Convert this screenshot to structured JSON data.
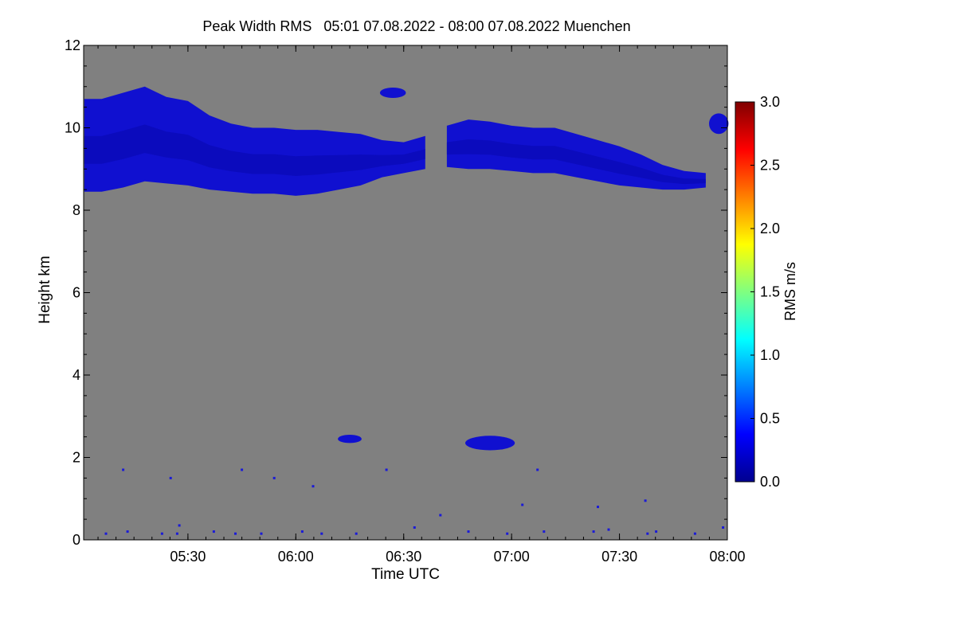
{
  "chart_data": {
    "type": "heatmap",
    "title": "Peak Width RMS   05:01 07.08.2022 - 08:00 07.08.2022 Muenchen",
    "xlabel": "Time UTC",
    "ylabel": "Height km",
    "xlim_hours": [
      5.0167,
      8.0
    ],
    "ylim": [
      0,
      12
    ],
    "x_ticks": [
      {
        "hour": 5.5,
        "label": "05:30"
      },
      {
        "hour": 6.0,
        "label": "06:00"
      },
      {
        "hour": 6.5,
        "label": "06:30"
      },
      {
        "hour": 7.0,
        "label": "07:00"
      },
      {
        "hour": 7.5,
        "label": "07:30"
      },
      {
        "hour": 8.0,
        "label": "08:00"
      }
    ],
    "y_ticks": [
      {
        "value": 0,
        "label": "0"
      },
      {
        "value": 2,
        "label": "2"
      },
      {
        "value": 4,
        "label": "4"
      },
      {
        "value": 6,
        "label": "6"
      },
      {
        "value": 8,
        "label": "8"
      },
      {
        "value": 10,
        "label": "10"
      },
      {
        "value": 12,
        "label": "12"
      }
    ],
    "colorbar": {
      "label": "RMS m/s",
      "range": [
        0.0,
        3.0
      ],
      "ticks": [
        {
          "value": 0.0,
          "label": "0.0"
        },
        {
          "value": 0.5,
          "label": "0.5"
        },
        {
          "value": 1.0,
          "label": "1.0"
        },
        {
          "value": 1.5,
          "label": "1.5"
        },
        {
          "value": 2.0,
          "label": "2.0"
        },
        {
          "value": 2.5,
          "label": "2.5"
        },
        {
          "value": 3.0,
          "label": "3.0"
        }
      ],
      "colors": [
        "#00008f",
        "#0000ff",
        "#0080ff",
        "#00ffff",
        "#80ff80",
        "#ffff00",
        "#ff8000",
        "#ff0000",
        "#800000"
      ]
    },
    "no_data_color": "#808080",
    "signal_color": "#1010d0",
    "cloud_layer": {
      "description_units": "hour -> [bottom_km, top_km]",
      "hours": [
        5.02,
        5.1,
        5.2,
        5.3,
        5.4,
        5.5,
        5.6,
        5.7,
        5.8,
        5.9,
        6.0,
        6.1,
        6.2,
        6.3,
        6.4,
        6.5,
        6.6,
        6.7,
        6.8,
        6.9,
        7.0,
        7.1,
        7.2,
        7.3,
        7.4,
        7.5,
        7.6,
        7.7,
        7.8,
        7.9,
        8.0
      ],
      "bottom": [
        8.45,
        8.45,
        8.55,
        8.7,
        8.65,
        8.6,
        8.5,
        8.45,
        8.4,
        8.4,
        8.35,
        8.4,
        8.5,
        8.6,
        8.8,
        8.9,
        9.0,
        9.05,
        9.0,
        9.0,
        8.95,
        8.9,
        8.9,
        8.8,
        8.7,
        8.6,
        8.55,
        8.5,
        8.5,
        8.55,
        8.6
      ],
      "top": [
        10.7,
        10.7,
        10.85,
        11.0,
        10.75,
        10.65,
        10.3,
        10.1,
        10.0,
        10.0,
        9.95,
        9.95,
        9.9,
        9.85,
        9.7,
        9.65,
        9.8,
        10.05,
        10.2,
        10.15,
        10.05,
        10.0,
        10.0,
        9.85,
        9.7,
        9.55,
        9.35,
        9.1,
        8.95,
        8.9,
        8.9
      ],
      "segments": [
        {
          "from_hour": 5.02,
          "to_hour": 6.62
        },
        {
          "from_hour": 6.62,
          "to_hour": 7.93
        }
      ]
    },
    "patches": [
      {
        "hour": 6.25,
        "height": 2.45,
        "width_hours": 0.11,
        "height_km": 0.2
      },
      {
        "hour": 6.9,
        "height": 2.35,
        "width_hours": 0.23,
        "height_km": 0.35
      },
      {
        "hour": 6.45,
        "height": 10.85,
        "width_hours": 0.12,
        "height_km": 0.25
      },
      {
        "hour": 7.96,
        "height": 10.1,
        "width_hours": 0.09,
        "height_km": 0.5
      }
    ],
    "noise_points": [
      {
        "hour": 5.12,
        "height": 0.15
      },
      {
        "hour": 5.22,
        "height": 0.2
      },
      {
        "hour": 5.38,
        "height": 0.15
      },
      {
        "hour": 5.45,
        "height": 0.15
      },
      {
        "hour": 5.62,
        "height": 0.2
      },
      {
        "hour": 5.72,
        "height": 0.15
      },
      {
        "hour": 5.84,
        "height": 0.15
      },
      {
        "hour": 6.03,
        "height": 0.2
      },
      {
        "hour": 6.12,
        "height": 0.15
      },
      {
        "hour": 6.28,
        "height": 0.15
      },
      {
        "hour": 6.55,
        "height": 0.3
      },
      {
        "hour": 6.67,
        "height": 0.6
      },
      {
        "hour": 6.98,
        "height": 0.15
      },
      {
        "hour": 7.15,
        "height": 0.2
      },
      {
        "hour": 7.38,
        "height": 0.2
      },
      {
        "hour": 7.45,
        "height": 0.25
      },
      {
        "hour": 7.63,
        "height": 0.15
      },
      {
        "hour": 7.67,
        "height": 0.2
      },
      {
        "hour": 7.85,
        "height": 0.15
      },
      {
        "hour": 7.98,
        "height": 0.3
      },
      {
        "hour": 5.2,
        "height": 1.7
      },
      {
        "hour": 5.42,
        "height": 1.5
      },
      {
        "hour": 5.75,
        "height": 1.7
      },
      {
        "hour": 5.9,
        "height": 1.5
      },
      {
        "hour": 6.08,
        "height": 1.3
      },
      {
        "hour": 6.42,
        "height": 1.7
      },
      {
        "hour": 7.12,
        "height": 1.7
      },
      {
        "hour": 7.05,
        "height": 0.85
      },
      {
        "hour": 7.4,
        "height": 0.8
      },
      {
        "hour": 7.62,
        "height": 0.95
      },
      {
        "hour": 5.46,
        "height": 0.35
      },
      {
        "hour": 6.8,
        "height": 0.2
      }
    ]
  }
}
